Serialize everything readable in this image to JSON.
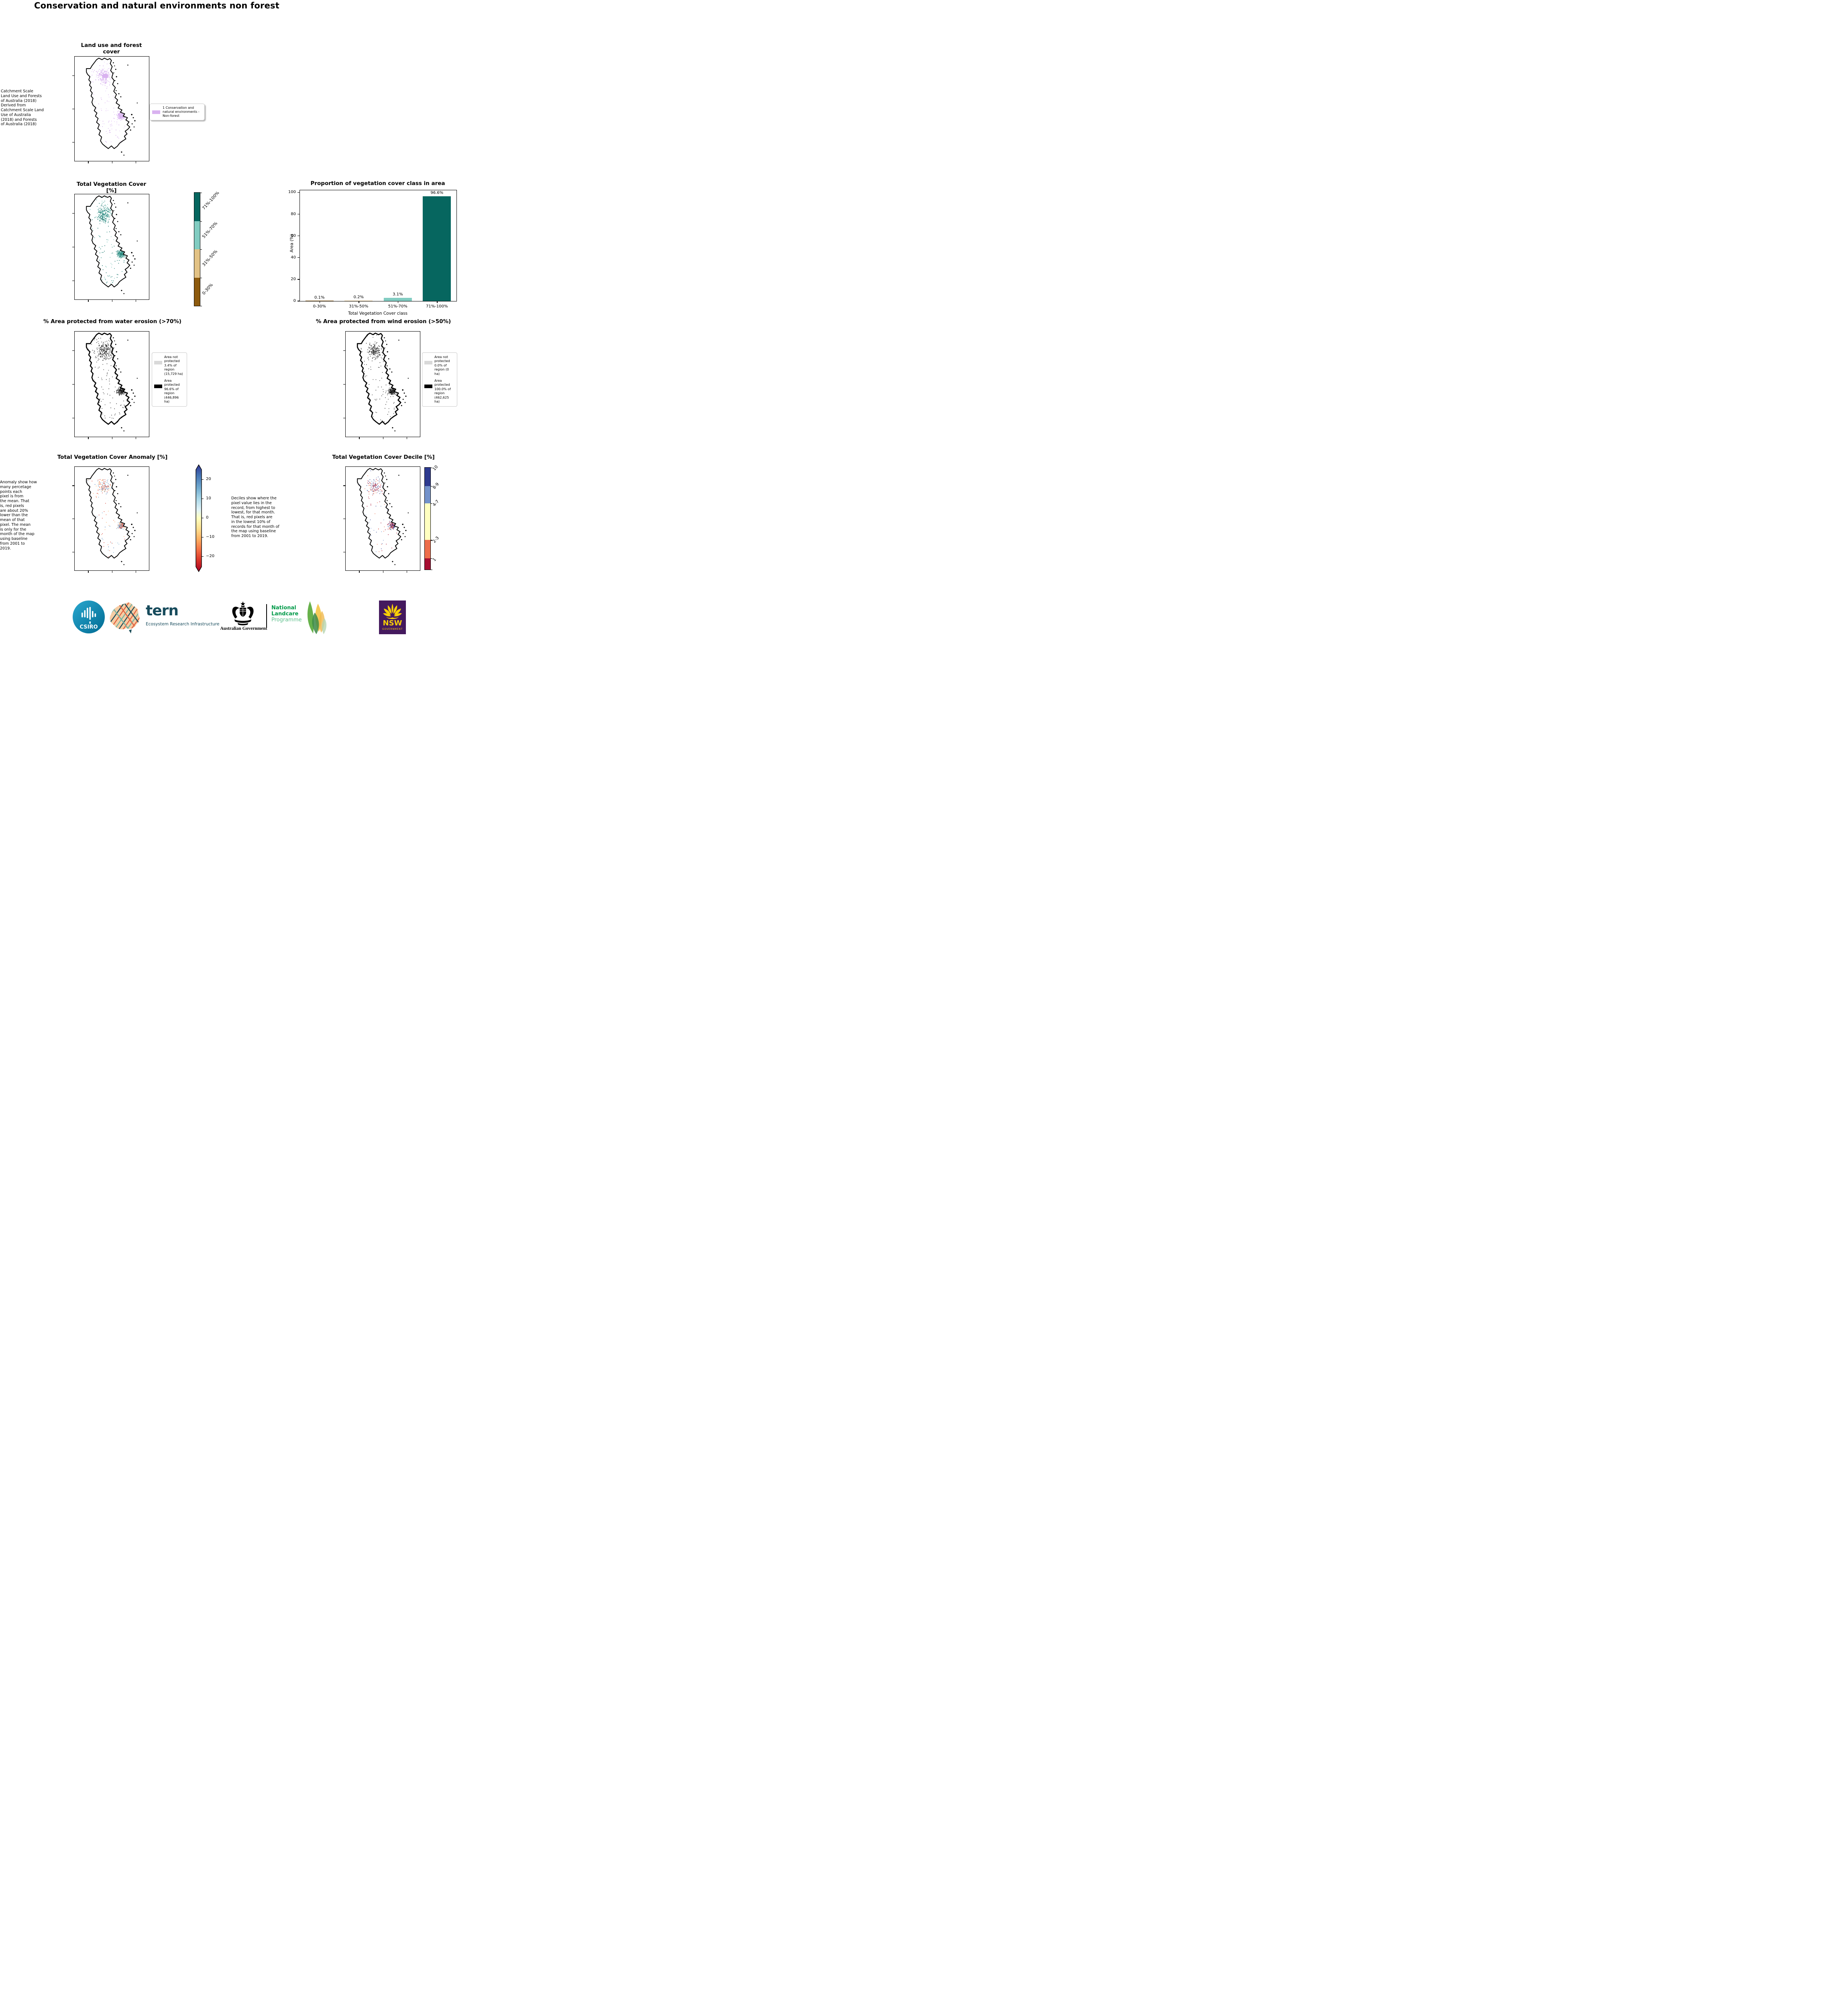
{
  "page_title": "Conservation and natural environments non forest",
  "panels": {
    "land_use": {
      "title": "Land use and forest cover",
      "note": " Catchment Scale\nLand Use and Forests\nof Australia (2018)\nDerived from\nCatchment Scale Land\nUse of Australia\n(2018) and Forests\nof Australia (2018)",
      "legend": [
        {
          "label": "1 Conservation and natural environments - Non-forest",
          "color": "#d9b2f0"
        }
      ]
    },
    "veg_cover": {
      "title": "Total Vegetation Cover [%]",
      "colorbar": {
        "classes": [
          {
            "label": "71%-100%",
            "color": "#06665f"
          },
          {
            "label": "51%-70%",
            "color": "#81ccc1"
          },
          {
            "label": "31%-50%",
            "color": "#e2c285"
          },
          {
            "label": "0-30%",
            "color": "#8d5a0e"
          }
        ]
      }
    },
    "water_erosion": {
      "title": "% Area protected from water erosion (>70%)",
      "legend": [
        {
          "label": "Area not protected 3.4% of region (15,729 ha)",
          "color": "#d9d9d9"
        },
        {
          "label": "Area protected 96.6% of region (446,896 ha)",
          "color": "#000000"
        }
      ]
    },
    "wind_erosion": {
      "title": "% Area protected from wind erosion (>50%)",
      "legend": [
        {
          "label": "Area not protected 0.0% of region (0 ha)",
          "color": "#d9d9d9"
        },
        {
          "label": "Area protected 100.0% of region (462,625 ha)",
          "color": "#000000"
        }
      ]
    },
    "anomaly": {
      "title": "Total Vegetation Cover Anomaly [%]",
      "note": "Anomaly show how\nmany percetage\npoints each\npixel is from\nthe mean. That\nis, red pixels\nare about 20%\nlower than the\nmean of that\npixel. The mean\nis only for the\nmonth of the map\nusing baseline\nfrom 2001 to\n2019.",
      "colorbar": {
        "ticks": [
          "20",
          "10",
          "0",
          "−10",
          "−20"
        ],
        "top_color": "#313695",
        "mid_color": "#ffffbf",
        "bottom_color": "#a50026"
      }
    },
    "decile": {
      "title": "Total Vegetation Cover Decile [%]",
      "note": "Deciles show where the\npixel value lies in the\nrecord, from highest to\nlowest, for that month.\nThat is, red pixels are\nin the lowest 10% of\nrecords for that month of\nthe map using baseline\nfrom 2001 to 2019.",
      "colorbar": {
        "classes": [
          {
            "label": "10",
            "color": "#2d3a8f",
            "fraction": 0.18
          },
          {
            "label": "8-9",
            "color": "#7392cb",
            "fraction": 0.17
          },
          {
            "label": "4-7",
            "color": "#ffffc0",
            "fraction": 0.36
          },
          {
            "label": "2-3",
            "color": "#ee6d4b",
            "fraction": 0.18
          },
          {
            "label": "1",
            "color": "#a60e31",
            "fraction": 0.11
          }
        ]
      }
    }
  },
  "chart_data": {
    "type": "bar",
    "title": "Proportion of vegetation cover class in area",
    "categories": [
      "0-30%",
      "31%-50%",
      "51%-70%",
      "71%-100%"
    ],
    "values": [
      0.1,
      0.2,
      3.1,
      96.6
    ],
    "bar_labels": [
      "0.1%",
      "0.2%",
      "3.1%",
      "96.6%"
    ],
    "bar_colors": [
      "#8d5a0e",
      "#e2c285",
      "#81ccc1",
      "#06665f"
    ],
    "xlabel": "Total Vegetation Cover class",
    "ylabel": "Area (%)",
    "ylim": [
      0,
      100
    ],
    "yticks": [
      "0",
      "20",
      "40",
      "60",
      "80",
      "100"
    ],
    "grid": false,
    "legend_position": "none"
  },
  "footer": {
    "csiro": {
      "label": "CSIRO",
      "color_top": "#2aa8cf",
      "color_bottom": "#006a92"
    },
    "tern": {
      "name": "tern",
      "subtitle": "Ecosystem Research Infrastructure",
      "color": "#174b5c"
    },
    "australian_government": {
      "label": "Australian Government"
    },
    "landcare": {
      "line1": "National",
      "line2": "Landcare",
      "line3": "Programme",
      "green": "#009a49",
      "light_green": "#5fc08d"
    },
    "nsw": {
      "name": "NSW",
      "subtitle": "GOVERNMENT",
      "bg": "#44195e",
      "accent": "#f9d006"
    }
  }
}
